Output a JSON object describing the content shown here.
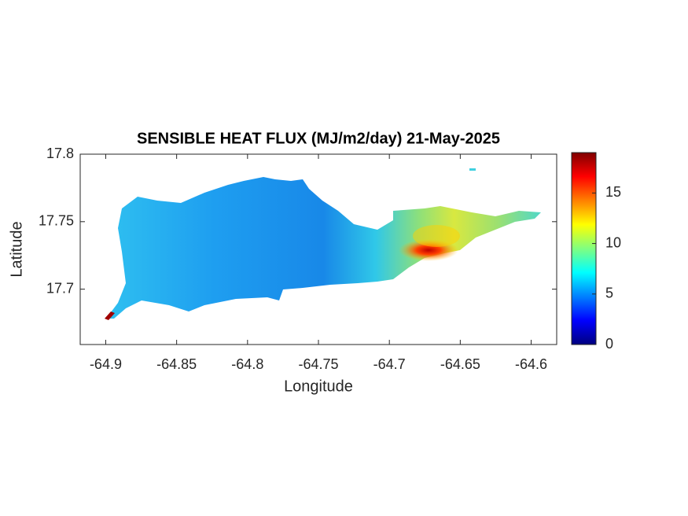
{
  "chart_data": {
    "type": "map",
    "title": "SENSIBLE HEAT FLUX (MJ/m2/day) 21-May-2025",
    "xlabel": "Longitude",
    "ylabel": "Latitude",
    "xlim": [
      -64.918,
      -64.582
    ],
    "ylim": [
      17.659,
      17.8
    ],
    "xticks": [
      -64.9,
      -64.85,
      -64.8,
      -64.75,
      -64.7,
      -64.65,
      -64.6
    ],
    "yticks": [
      17.7,
      17.75,
      17.8
    ],
    "colormap": "jet",
    "clim": [
      0,
      19
    ],
    "cticks": [
      0,
      5,
      10,
      15
    ]
  }
}
